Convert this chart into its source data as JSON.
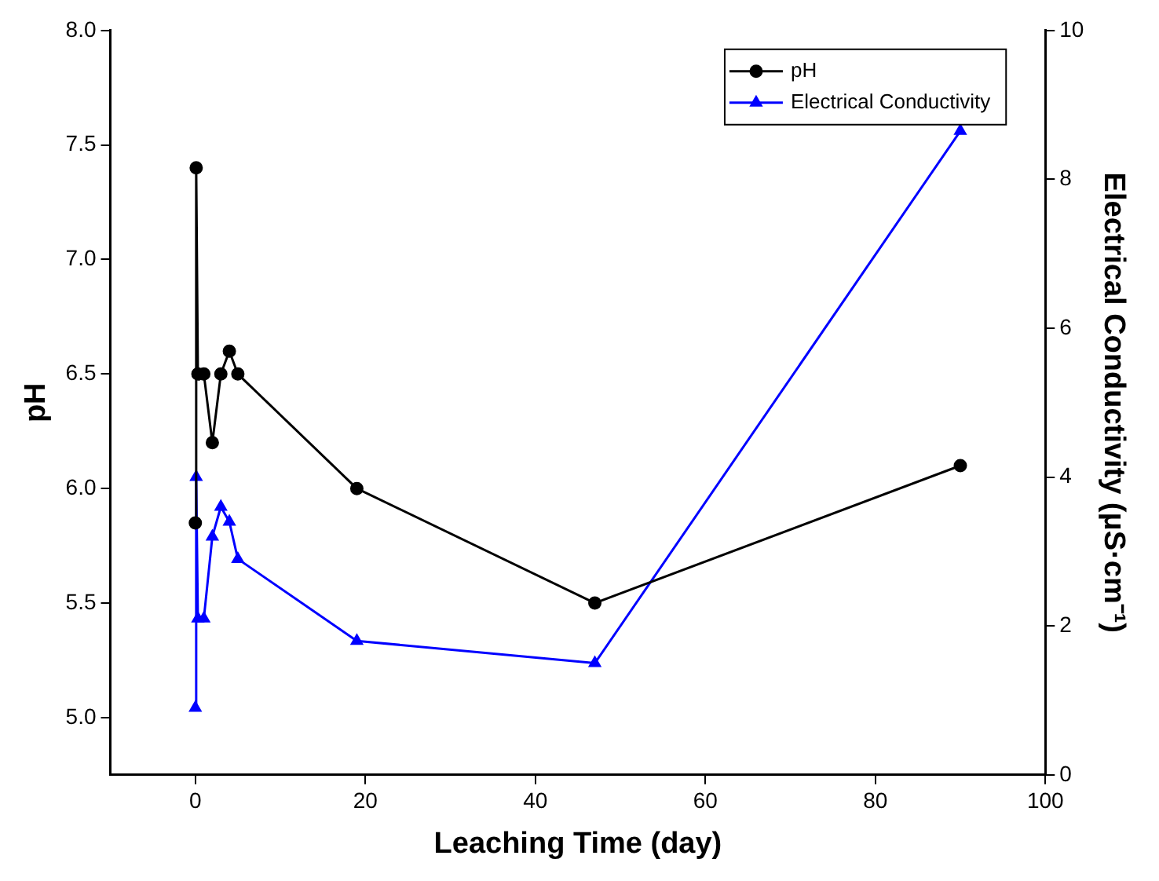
{
  "chart_data": {
    "type": "line",
    "xlabel": "Leaching Time (day)",
    "ylabel": "pH",
    "y2label": "Electrical Conductivity (μS·cm⁻¹)",
    "xlim": [
      -10,
      100
    ],
    "xticks": [
      0,
      20,
      40,
      60,
      80,
      100
    ],
    "ylim": [
      4.75,
      8
    ],
    "yticks": [
      {
        "value": 5,
        "label": "5.0"
      },
      5.5,
      {
        "value": 6,
        "label": "6.0"
      },
      6.5,
      {
        "value": 7,
        "label": "7.0"
      },
      7.5,
      {
        "value": 8,
        "label": "8.0"
      }
    ],
    "y2lim": [
      0,
      10
    ],
    "y2ticks": [
      0,
      2,
      4,
      6,
      8,
      10
    ],
    "legend": "top right",
    "grid": false,
    "series": [
      {
        "name": "pH",
        "color": "#000000",
        "marker": "circle",
        "x": [
          0,
          0.1,
          0.3,
          1,
          2,
          3,
          4,
          5,
          19,
          47,
          90
        ],
        "values": [
          5.85,
          7.4,
          6.5,
          6.5,
          6.2,
          6.5,
          6.6,
          6.5,
          6.0,
          5.5,
          6.1
        ]
      },
      {
        "name": "Electrical Conductivity",
        "color": "#0000ff",
        "marker": "triangle",
        "axis": "y2",
        "x": [
          0,
          0.1,
          0.3,
          1,
          2,
          3,
          4,
          5,
          19,
          47,
          90
        ],
        "values": [
          0.9,
          4.0,
          2.1,
          2.1,
          3.2,
          3.6,
          3.4,
          2.9,
          1.8,
          1.5,
          8.65
        ]
      }
    ]
  }
}
